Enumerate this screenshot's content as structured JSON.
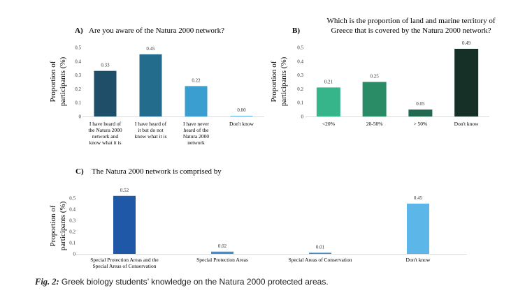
{
  "chart_data": [
    {
      "id": "A",
      "type": "bar",
      "panel_label": "A)",
      "title": [
        "Are you aware of the Natura 2000 network?"
      ],
      "ylabel": [
        "Proportion of",
        "participants (%)"
      ],
      "ylim": [
        0,
        0.5
      ],
      "yticks": [
        "0",
        "0.1",
        "0.2",
        "0.3",
        "0.4",
        "0.5"
      ],
      "categories": [
        [
          "I have heard of",
          "the Natura 2000",
          "network and",
          "know what it is"
        ],
        [
          "I have heard of",
          "it but do not",
          "know what it is"
        ],
        [
          "I have never",
          "heard of the",
          "Natura 2000",
          "network"
        ],
        [
          "Don't know"
        ]
      ],
      "values": [
        0.33,
        0.45,
        0.22,
        0.0
      ],
      "value_labels": [
        "0.33",
        "0.45",
        "0.22",
        "0.00"
      ],
      "colors": [
        "#1f4e68",
        "#236c8c",
        "#3a9ed0",
        "#6fc1ea"
      ]
    },
    {
      "id": "B",
      "type": "bar",
      "panel_label": "B)",
      "title": [
        "Which is the proportion of land and marine territory of",
        "Greece that is covered by the Natura 2000 network?"
      ],
      "ylabel": [
        "Proportion of",
        "participants (%)"
      ],
      "ylim": [
        0,
        0.5
      ],
      "yticks": [
        "0",
        "0.1",
        "0.2",
        "0.3",
        "0.4",
        "0.5"
      ],
      "categories": [
        [
          "<20%"
        ],
        [
          "20-50%"
        ],
        [
          "> 50%"
        ],
        [
          "Don't know"
        ]
      ],
      "values": [
        0.21,
        0.25,
        0.05,
        0.49
      ],
      "value_labels": [
        "0.21",
        "0.25",
        "0.05",
        "0.49"
      ],
      "colors": [
        "#35b589",
        "#2a8c66",
        "#226a4f",
        "#163027"
      ]
    },
    {
      "id": "C",
      "type": "bar",
      "panel_label": "C)",
      "title": [
        "The Natura 2000 network is comprised by"
      ],
      "ylabel": [
        "Proportion of",
        "participants (%)"
      ],
      "ylim": [
        0,
        0.5
      ],
      "yticks": [
        "0",
        "0.1",
        "0.2",
        "0.3",
        "0.4",
        "0.5"
      ],
      "categories": [
        [
          "Special Protection Areas and the",
          "Special Areas of Conservation"
        ],
        [
          "Special Protection Areas"
        ],
        [
          "Special Areas of Conservation"
        ],
        [
          "Don't know"
        ]
      ],
      "values": [
        0.52,
        0.02,
        0.01,
        0.45
      ],
      "value_labels": [
        "0.52",
        "0.02",
        "0.01",
        "0.45"
      ],
      "colors": [
        "#2058a8",
        "#3d8fd4",
        "#3d8fd4",
        "#5cb6e8"
      ]
    }
  ],
  "caption": {
    "label": "Fig. 2:",
    "text": "Greek biology students’ knowledge on the Natura 2000 protected areas."
  }
}
